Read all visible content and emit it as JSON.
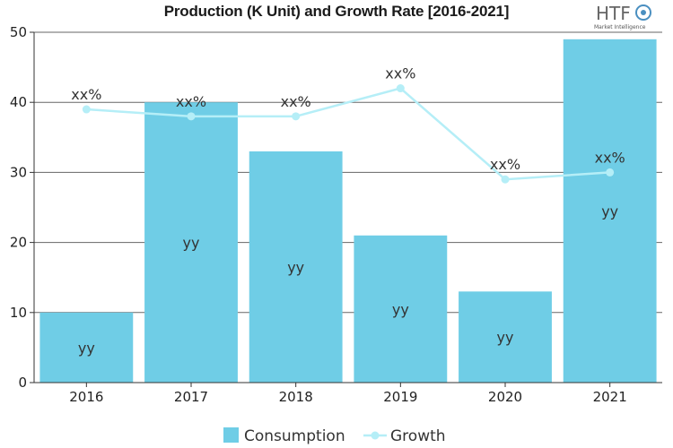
{
  "chart_data": {
    "type": "bar",
    "title": "Production (K Unit) and Growth Rate [2016-2021]",
    "categories": [
      "2016",
      "2017",
      "2018",
      "2019",
      "2020",
      "2021"
    ],
    "series": [
      {
        "name": "Consumption",
        "type": "bar",
        "values": [
          10,
          40,
          33,
          21,
          13,
          49
        ],
        "label": "yy",
        "color": "#6fcde6"
      },
      {
        "name": "Growth",
        "type": "line",
        "values": [
          39,
          38,
          38,
          42,
          29,
          30
        ],
        "label": "xx%",
        "color": "#b5eef7"
      }
    ],
    "ylim": [
      0,
      50
    ],
    "yticks": [
      0,
      10,
      20,
      30,
      40,
      50
    ],
    "grid": true,
    "legend": "bottom-center"
  },
  "logo": {
    "mark": "HTF",
    "subtitle": "Market Intelligence"
  }
}
